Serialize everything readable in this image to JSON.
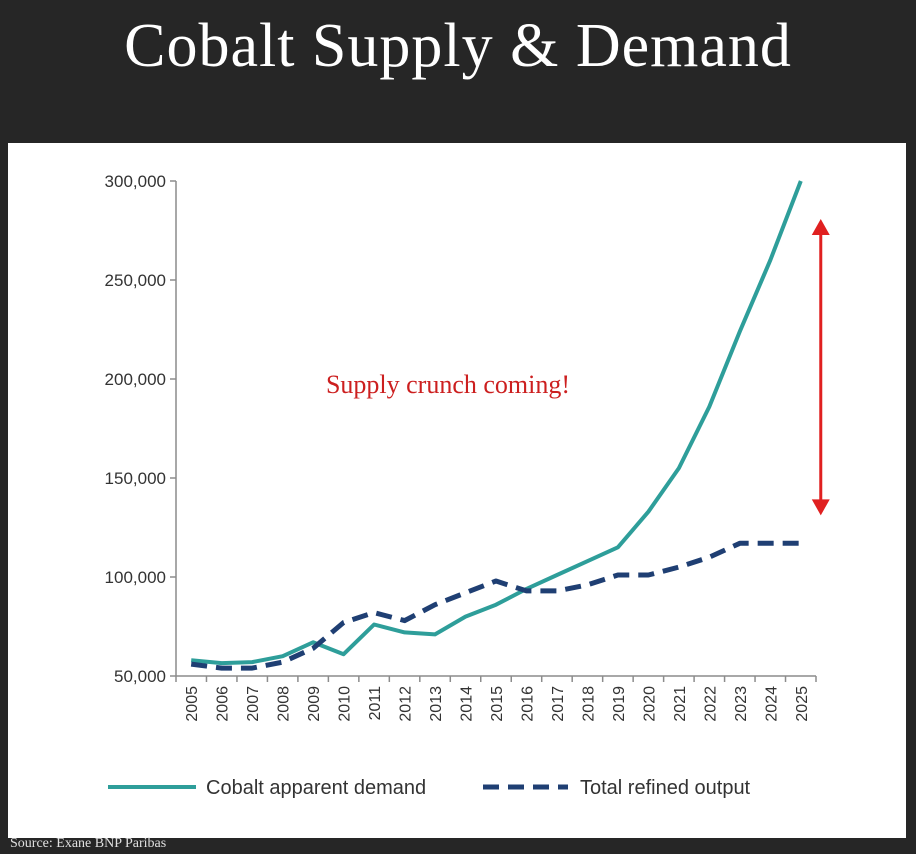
{
  "title": "Cobalt Supply & Demand",
  "source": "Source: Exane BNP Paribas",
  "chart_data": {
    "type": "line",
    "title": "Cobalt Supply & Demand",
    "xlabel": "",
    "ylabel": "",
    "x": [
      "2005",
      "2006",
      "2007",
      "2008",
      "2009",
      "2010",
      "2011",
      "2012",
      "2013",
      "2014",
      "2015",
      "2016",
      "2017",
      "2018",
      "2019",
      "2020",
      "2021",
      "2022",
      "2023",
      "2024",
      "2025"
    ],
    "ylim": [
      50000,
      300000
    ],
    "yticks": [
      50000,
      100000,
      150000,
      200000,
      250000,
      300000
    ],
    "ytick_labels": [
      "50,000",
      "100,000",
      "150,000",
      "200,000",
      "250,000",
      "300,000"
    ],
    "grid": false,
    "legend_position": "bottom",
    "series": [
      {
        "name": "Cobalt apparent demand",
        "style": "solid",
        "color": "#2e9e9a",
        "values": [
          58000,
          56500,
          57000,
          60000,
          67000,
          61000,
          76000,
          72000,
          71000,
          80000,
          86000,
          94000,
          101000,
          108000,
          115000,
          133000,
          155000,
          186000,
          224000,
          260000,
          300000
        ]
      },
      {
        "name": "Total refined output",
        "style": "dashed",
        "color": "#1f3f73",
        "values": [
          56000,
          54000,
          54000,
          57000,
          64000,
          77000,
          82000,
          78000,
          86000,
          92000,
          98000,
          93000,
          93000,
          96000,
          101000,
          101000,
          105000,
          110000,
          117000,
          117000,
          117000
        ]
      }
    ],
    "annotations": [
      {
        "text": "Supply crunch coming!",
        "color": "#cc1f1f"
      }
    ],
    "gap_arrow": {
      "x": "2025",
      "y_from": 117000,
      "y_to": 300000,
      "color": "#e02020"
    }
  }
}
